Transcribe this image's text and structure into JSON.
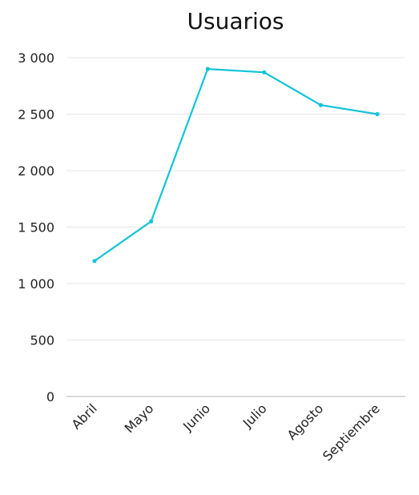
{
  "chart_data": {
    "type": "line",
    "title": "Usuarios",
    "xlabel": "",
    "ylabel": "",
    "categories": [
      "Abril",
      "Mayo",
      "Junio",
      "Julio",
      "Agosto",
      "Septiembre"
    ],
    "series": [
      {
        "values": [
          1200,
          1550,
          2900,
          2870,
          2580,
          2500
        ],
        "color": "#12c4d8"
      }
    ],
    "ylim": [
      0,
      3000
    ],
    "yticks": [
      0,
      500,
      1000,
      1500,
      2000,
      2500,
      3000
    ],
    "ytick_labels": [
      "0",
      "500",
      "1 000",
      "1 500",
      "2 000",
      "2 500",
      "3 000"
    ],
    "grid": true,
    "legend": "none"
  }
}
